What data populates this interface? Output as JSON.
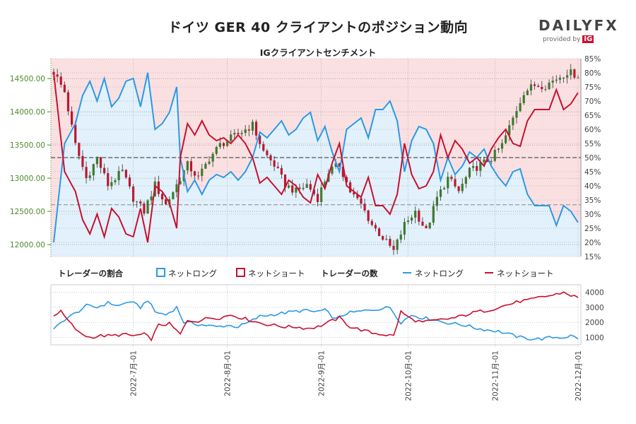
{
  "title": "ドイツ GER 40 クライアントのポジション動向",
  "subtitle": "IGクライアントセンチメント",
  "logo": {
    "brand": "DAILYFX",
    "provided_by": "provided by",
    "ig": "IG"
  },
  "colors": {
    "short_bg": "#fbe0e2",
    "long_bg": "#e2f1fb",
    "long_line": "#2b99e6",
    "short_line": "#c8102e",
    "bull": "#3c7a2e",
    "bear": "#c0152f",
    "axis_price": "#4c8a2c"
  },
  "chart_data": [
    {
      "type": "candlestick+line",
      "name": "price_and_sentiment",
      "price_axis": {
        "ticks": [
          12000,
          12500,
          13000,
          13500,
          14000,
          14500
        ],
        "tick_labels": [
          "12000.00",
          "12500.00",
          "13000.00",
          "13500.00",
          "14000.00",
          "14500.00"
        ],
        "range": [
          11820,
          14800
        ]
      },
      "percent_axis": {
        "ticks": [
          15,
          20,
          25,
          30,
          35,
          40,
          45,
          50,
          55,
          60,
          65,
          70,
          75,
          80,
          85
        ],
        "tick_labels": [
          "15%",
          "20%",
          "25%",
          "30%",
          "35%",
          "40%",
          "45%",
          "50%",
          "55%",
          "60%",
          "65%",
          "70%",
          "75%",
          "80%",
          "85%"
        ],
        "range": [
          15,
          85
        ]
      },
      "price_anchors": [
        [
          0,
          14600
        ],
        [
          3,
          14300
        ],
        [
          6,
          13500
        ],
        [
          9,
          13000
        ],
        [
          12,
          13300
        ],
        [
          15,
          12900
        ],
        [
          19,
          13100
        ],
        [
          22,
          12700
        ],
        [
          25,
          12500
        ],
        [
          28,
          12900
        ],
        [
          31,
          12600
        ],
        [
          34,
          12900
        ],
        [
          37,
          13200
        ],
        [
          40,
          13000
        ],
        [
          43,
          13300
        ],
        [
          46,
          13500
        ],
        [
          49,
          13600
        ],
        [
          52,
          13700
        ],
        [
          55,
          13800
        ],
        [
          58,
          13400
        ],
        [
          61,
          13200
        ],
        [
          64,
          12900
        ],
        [
          67,
          12800
        ],
        [
          70,
          12900
        ],
        [
          73,
          12700
        ],
        [
          76,
          13100
        ],
        [
          79,
          13200
        ],
        [
          82,
          12800
        ],
        [
          85,
          12600
        ],
        [
          88,
          12300
        ],
        [
          91,
          12100
        ],
        [
          94,
          11900
        ],
        [
          97,
          12300
        ],
        [
          100,
          12500
        ],
        [
          103,
          12200
        ],
        [
          106,
          12700
        ],
        [
          109,
          13000
        ],
        [
          112,
          12800
        ],
        [
          115,
          13100
        ],
        [
          118,
          13200
        ],
        [
          121,
          13300
        ],
        [
          124,
          13500
        ],
        [
          127,
          13900
        ],
        [
          130,
          14300
        ],
        [
          133,
          14400
        ],
        [
          136,
          14400
        ],
        [
          139,
          14500
        ],
        [
          142,
          14600
        ],
        [
          145,
          14550
        ]
      ],
      "long_pct_anchors": [
        [
          0,
          20
        ],
        [
          3,
          55
        ],
        [
          6,
          62
        ],
        [
          8,
          72
        ],
        [
          10,
          77
        ],
        [
          12,
          70
        ],
        [
          14,
          78
        ],
        [
          16,
          68
        ],
        [
          18,
          71
        ],
        [
          20,
          77
        ],
        [
          22,
          78
        ],
        [
          24,
          68
        ],
        [
          26,
          80
        ],
        [
          28,
          60
        ],
        [
          30,
          62
        ],
        [
          32,
          66
        ],
        [
          34,
          75
        ],
        [
          35,
          50
        ],
        [
          37,
          38
        ],
        [
          39,
          42
        ],
        [
          41,
          37
        ],
        [
          43,
          42
        ],
        [
          45,
          44
        ],
        [
          47,
          43
        ],
        [
          49,
          45
        ],
        [
          51,
          42
        ],
        [
          53,
          45
        ],
        [
          55,
          50
        ],
        [
          57,
          59
        ],
        [
          59,
          57
        ],
        [
          61,
          60
        ],
        [
          63,
          63
        ],
        [
          65,
          58
        ],
        [
          67,
          60
        ],
        [
          69,
          64
        ],
        [
          71,
          66
        ],
        [
          73,
          56
        ],
        [
          75,
          61
        ],
        [
          77,
          52
        ],
        [
          79,
          45
        ],
        [
          81,
          60
        ],
        [
          83,
          62
        ],
        [
          85,
          64
        ],
        [
          87,
          57
        ],
        [
          89,
          67
        ],
        [
          91,
          67
        ],
        [
          93,
          70
        ],
        [
          95,
          63
        ],
        [
          97,
          45
        ],
        [
          99,
          56
        ],
        [
          101,
          61
        ],
        [
          103,
          60
        ],
        [
          105,
          55
        ],
        [
          107,
          42
        ],
        [
          109,
          50
        ],
        [
          111,
          44
        ],
        [
          113,
          47
        ],
        [
          115,
          52
        ],
        [
          117,
          50
        ],
        [
          119,
          53
        ],
        [
          121,
          47
        ],
        [
          123,
          43
        ],
        [
          125,
          40
        ],
        [
          127,
          45
        ],
        [
          129,
          46
        ],
        [
          131,
          37
        ],
        [
          133,
          33
        ],
        [
          135,
          33
        ],
        [
          137,
          33
        ],
        [
          139,
          26
        ],
        [
          141,
          33
        ],
        [
          143,
          31
        ],
        [
          145,
          27
        ]
      ],
      "series": [
        {
          "name": "ネットロング"
        },
        {
          "name": "ネットショート"
        }
      ]
    },
    {
      "type": "line",
      "name": "trader_counts",
      "y_axis": {
        "ticks": [
          1000,
          2000,
          3000,
          4000
        ],
        "tick_labels": [
          "1000",
          "2000",
          "3000",
          "4000"
        ],
        "range": [
          500,
          4500
        ]
      },
      "long_anchors": [
        [
          0,
          1500
        ],
        [
          3,
          2200
        ],
        [
          6,
          2600
        ],
        [
          9,
          3100
        ],
        [
          12,
          3000
        ],
        [
          15,
          3300
        ],
        [
          18,
          3100
        ],
        [
          21,
          3400
        ],
        [
          24,
          3000
        ],
        [
          26,
          3500
        ],
        [
          28,
          2700
        ],
        [
          31,
          2500
        ],
        [
          34,
          3000
        ],
        [
          36,
          2000
        ],
        [
          39,
          1900
        ],
        [
          42,
          1800
        ],
        [
          45,
          1700
        ],
        [
          48,
          1800
        ],
        [
          51,
          1700
        ],
        [
          54,
          2000
        ],
        [
          57,
          2400
        ],
        [
          60,
          2500
        ],
        [
          63,
          2600
        ],
        [
          66,
          2700
        ],
        [
          69,
          2800
        ],
        [
          72,
          2700
        ],
        [
          75,
          2800
        ],
        [
          78,
          2200
        ],
        [
          81,
          2600
        ],
        [
          84,
          2700
        ],
        [
          87,
          2800
        ],
        [
          90,
          2900
        ],
        [
          93,
          3000
        ],
        [
          96,
          2000
        ],
        [
          99,
          2500
        ],
        [
          102,
          2300
        ],
        [
          105,
          2200
        ],
        [
          108,
          2000
        ],
        [
          111,
          1900
        ],
        [
          114,
          1800
        ],
        [
          117,
          1600
        ],
        [
          120,
          1500
        ],
        [
          123,
          1400
        ],
        [
          126,
          1200
        ],
        [
          129,
          1000
        ],
        [
          132,
          900
        ],
        [
          135,
          900
        ],
        [
          138,
          1000
        ],
        [
          141,
          1000
        ],
        [
          143,
          1100
        ],
        [
          145,
          950
        ]
      ],
      "short_anchors": [
        [
          0,
          2500
        ],
        [
          2,
          2700
        ],
        [
          4,
          2100
        ],
        [
          7,
          1300
        ],
        [
          10,
          1000
        ],
        [
          13,
          1100
        ],
        [
          16,
          1100
        ],
        [
          19,
          1200
        ],
        [
          22,
          1100
        ],
        [
          25,
          1200
        ],
        [
          27,
          900
        ],
        [
          29,
          1800
        ],
        [
          32,
          1900
        ],
        [
          35,
          1200
        ],
        [
          37,
          2100
        ],
        [
          40,
          2100
        ],
        [
          43,
          2300
        ],
        [
          46,
          2300
        ],
        [
          49,
          2500
        ],
        [
          52,
          2300
        ],
        [
          55,
          2100
        ],
        [
          58,
          1900
        ],
        [
          61,
          1800
        ],
        [
          64,
          1700
        ],
        [
          67,
          1700
        ],
        [
          70,
          1600
        ],
        [
          73,
          1700
        ],
        [
          76,
          2000
        ],
        [
          79,
          2300
        ],
        [
          82,
          1700
        ],
        [
          85,
          1500
        ],
        [
          88,
          1300
        ],
        [
          91,
          1200
        ],
        [
          94,
          1100
        ],
        [
          96,
          2700
        ],
        [
          99,
          2200
        ],
        [
          102,
          2000
        ],
        [
          105,
          2100
        ],
        [
          108,
          2200
        ],
        [
          111,
          2300
        ],
        [
          114,
          2500
        ],
        [
          117,
          2700
        ],
        [
          120,
          2800
        ],
        [
          123,
          3000
        ],
        [
          126,
          3200
        ],
        [
          129,
          3400
        ],
        [
          132,
          3500
        ],
        [
          135,
          3700
        ],
        [
          138,
          3800
        ],
        [
          141,
          4000
        ],
        [
          143,
          3800
        ],
        [
          145,
          3650
        ]
      ],
      "series": [
        {
          "name": "ネットロング"
        },
        {
          "name": "ネットショート"
        }
      ]
    }
  ],
  "legend": {
    "ratio_title": "トレーダーの割合",
    "count_title": "トレーダーの数",
    "net_long": "ネットロング",
    "net_short": "ネットショート"
  },
  "x_axis": {
    "n_points": 146,
    "labels": [
      {
        "text": "2022-7月-01",
        "index": 22
      },
      {
        "text": "2022-8月-01",
        "index": 48
      },
      {
        "text": "2022-9月-01",
        "index": 74
      },
      {
        "text": "2022-10月-01",
        "index": 98
      },
      {
        "text": "2022-11月-01",
        "index": 122
      },
      {
        "text": "2022-12月-01",
        "index": 145
      }
    ]
  }
}
